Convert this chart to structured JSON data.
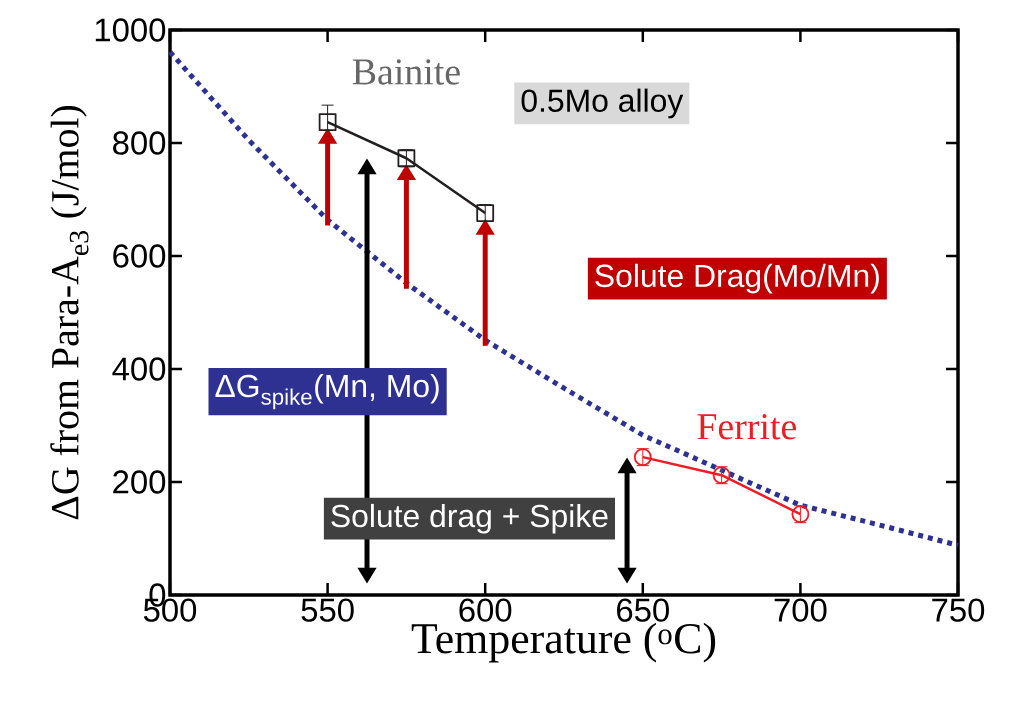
{
  "chart_data": {
    "type": "line",
    "xlabel": "Temperature ($^{o}$C)",
    "ylabel": "ΔG from Para-A$_{e3}$ (J/mol)",
    "xlim": [
      500,
      750
    ],
    "ylim": [
      0,
      1000
    ],
    "xticks": [
      500,
      550,
      600,
      650,
      700,
      750
    ],
    "yticks": [
      0,
      200,
      400,
      600,
      800,
      1000
    ],
    "grid": false,
    "series": [
      {
        "color": "#2e3192",
        "line_style": "dotted",
        "marker": "none",
        "x": [
          500,
          525,
          550,
          575,
          600,
          625,
          650,
          675,
          700,
          725,
          750
        ],
        "values": [
          961,
          805,
          664,
          552,
          451,
          366,
          283,
          221,
          159,
          124,
          88
        ]
      },
      {
        "name": "Bainite",
        "color": "#231f20",
        "line_style": "solid",
        "marker": "square",
        "x": [
          550,
          575,
          600
        ],
        "values": [
          837,
          773,
          676
        ],
        "errors": [
          30,
          15,
          15
        ]
      },
      {
        "name": "Ferrite",
        "color": "#ee1c25",
        "line_style": "solid",
        "marker": "circle",
        "x": [
          650,
          675,
          700
        ],
        "values": [
          244,
          212,
          143
        ],
        "errors": [
          15,
          15,
          15
        ]
      }
    ],
    "annotations": [
      "0.5Mo alloy",
      "Solute Drag(Mo/Mn)",
      "ΔG$_{spike}$(Mn, Mo)",
      "Solute drag + Spike"
    ]
  }
}
